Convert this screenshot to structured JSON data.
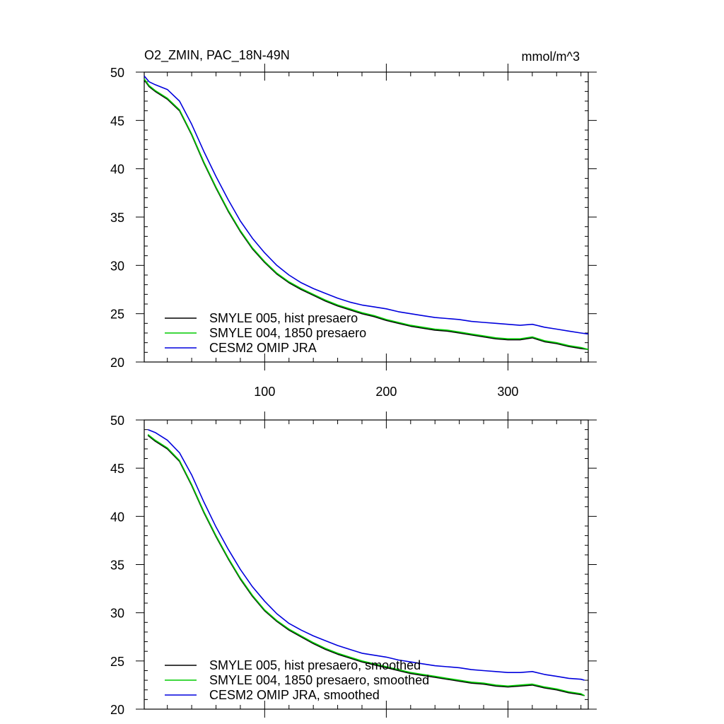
{
  "chart_data": [
    {
      "type": "line",
      "title_left": "O2_ZMIN, PAC_18N-49N",
      "title_right": "mmol/m^3",
      "xlim": [
        1,
        366
      ],
      "ylim": [
        20,
        50
      ],
      "xticks": [
        100,
        200,
        300
      ],
      "yticks": [
        20,
        25,
        30,
        35,
        40,
        45,
        50
      ],
      "grid": false,
      "legend": "bottom-left",
      "series": [
        {
          "name": "SMYLE 005, hist presaero",
          "color": "#000000",
          "x": [
            1,
            5,
            10,
            20,
            30,
            40,
            50,
            60,
            70,
            80,
            90,
            100,
            110,
            120,
            130,
            140,
            150,
            160,
            170,
            180,
            190,
            200,
            210,
            220,
            230,
            240,
            250,
            260,
            270,
            280,
            290,
            300,
            310,
            320,
            330,
            340,
            350,
            360,
            366
          ],
          "y": [
            49.2,
            48.5,
            48.0,
            47.2,
            46.0,
            43.5,
            40.6,
            38.0,
            35.6,
            33.5,
            31.7,
            30.3,
            29.1,
            28.2,
            27.5,
            26.9,
            26.3,
            25.8,
            25.4,
            25.0,
            24.7,
            24.3,
            24.0,
            23.7,
            23.5,
            23.3,
            23.2,
            23.0,
            22.8,
            22.6,
            22.4,
            22.3,
            22.3,
            22.5,
            22.1,
            21.9,
            21.6,
            21.4,
            21.3
          ]
        },
        {
          "name": "SMYLE 004, 1850 presaero",
          "color": "#00cc00",
          "x": [
            1,
            5,
            10,
            20,
            30,
            40,
            50,
            60,
            70,
            80,
            90,
            100,
            110,
            120,
            130,
            140,
            150,
            160,
            170,
            180,
            190,
            200,
            210,
            220,
            230,
            240,
            250,
            260,
            270,
            280,
            290,
            300,
            310,
            320,
            330,
            340,
            350,
            360,
            366
          ],
          "y": [
            49.3,
            48.6,
            48.1,
            47.3,
            46.1,
            43.6,
            40.7,
            38.1,
            35.7,
            33.6,
            31.8,
            30.4,
            29.2,
            28.3,
            27.6,
            27.0,
            26.4,
            25.9,
            25.5,
            25.1,
            24.8,
            24.4,
            24.1,
            23.8,
            23.6,
            23.4,
            23.3,
            23.1,
            22.9,
            22.7,
            22.5,
            22.4,
            22.4,
            22.6,
            22.2,
            22.0,
            21.7,
            21.5,
            21.3
          ]
        },
        {
          "name": "CESM2 OMIP JRA",
          "color": "#0000dd",
          "x": [
            1,
            5,
            10,
            20,
            30,
            40,
            50,
            60,
            70,
            80,
            90,
            100,
            110,
            120,
            130,
            140,
            150,
            160,
            170,
            180,
            190,
            200,
            210,
            220,
            230,
            240,
            250,
            260,
            270,
            280,
            290,
            300,
            310,
            320,
            330,
            340,
            350,
            360,
            366
          ],
          "y": [
            49.6,
            49.0,
            48.7,
            48.2,
            47.0,
            44.6,
            41.8,
            39.2,
            36.8,
            34.6,
            32.8,
            31.3,
            30.0,
            29.0,
            28.2,
            27.6,
            27.1,
            26.6,
            26.2,
            25.9,
            25.7,
            25.5,
            25.2,
            25.0,
            24.8,
            24.6,
            24.5,
            24.4,
            24.2,
            24.1,
            24.0,
            23.9,
            23.8,
            23.9,
            23.6,
            23.4,
            23.2,
            23.0,
            22.9
          ]
        }
      ]
    },
    {
      "type": "line",
      "xlim": [
        1,
        366
      ],
      "ylim": [
        20,
        50
      ],
      "xticks": [
        100,
        200,
        300
      ],
      "yticks": [
        20,
        25,
        30,
        35,
        40,
        45,
        50
      ],
      "grid": false,
      "legend": "bottom-left",
      "series": [
        {
          "name": "SMYLE 005, hist presaero, smoothed",
          "color": "#000000",
          "x": [
            4,
            10,
            20,
            30,
            40,
            50,
            60,
            70,
            80,
            90,
            100,
            110,
            120,
            130,
            140,
            150,
            160,
            170,
            180,
            190,
            200,
            210,
            220,
            230,
            240,
            250,
            260,
            270,
            280,
            290,
            300,
            310,
            320,
            330,
            340,
            350,
            360,
            363
          ],
          "y": [
            48.4,
            47.8,
            47.0,
            45.7,
            43.2,
            40.4,
            37.9,
            35.6,
            33.5,
            31.7,
            30.2,
            29.1,
            28.2,
            27.5,
            26.8,
            26.2,
            25.7,
            25.3,
            24.9,
            24.6,
            24.3,
            24.0,
            23.7,
            23.5,
            23.3,
            23.1,
            22.9,
            22.7,
            22.6,
            22.4,
            22.3,
            22.4,
            22.5,
            22.2,
            22.0,
            21.7,
            21.5,
            21.4
          ]
        },
        {
          "name": "SMYLE 004, 1850 presaero, smoothed",
          "color": "#00cc00",
          "x": [
            4,
            10,
            20,
            30,
            40,
            50,
            60,
            70,
            80,
            90,
            100,
            110,
            120,
            130,
            140,
            150,
            160,
            170,
            180,
            190,
            200,
            210,
            220,
            230,
            240,
            250,
            260,
            270,
            280,
            290,
            300,
            310,
            320,
            330,
            340,
            350,
            360,
            363
          ],
          "y": [
            48.5,
            47.9,
            47.1,
            45.8,
            43.3,
            40.5,
            38.0,
            35.7,
            33.6,
            31.8,
            30.3,
            29.2,
            28.3,
            27.6,
            26.9,
            26.3,
            25.8,
            25.4,
            25.0,
            24.7,
            24.4,
            24.1,
            23.8,
            23.6,
            23.4,
            23.2,
            23.0,
            22.8,
            22.7,
            22.5,
            22.4,
            22.5,
            22.6,
            22.3,
            22.1,
            21.8,
            21.6,
            21.4
          ]
        },
        {
          "name": "CESM2 OMIP JRA, smoothed",
          "color": "#0000dd",
          "x": [
            4,
            10,
            20,
            30,
            40,
            50,
            60,
            70,
            80,
            90,
            100,
            110,
            120,
            130,
            140,
            150,
            160,
            170,
            180,
            190,
            200,
            210,
            220,
            230,
            240,
            250,
            260,
            270,
            280,
            290,
            300,
            310,
            320,
            330,
            340,
            350,
            360,
            363
          ],
          "y": [
            49.0,
            48.7,
            47.9,
            46.6,
            44.3,
            41.5,
            38.9,
            36.6,
            34.5,
            32.7,
            31.2,
            29.9,
            28.9,
            28.2,
            27.6,
            27.1,
            26.6,
            26.2,
            25.8,
            25.6,
            25.4,
            25.1,
            24.9,
            24.7,
            24.5,
            24.4,
            24.3,
            24.1,
            24.0,
            23.9,
            23.8,
            23.8,
            23.9,
            23.6,
            23.4,
            23.2,
            23.1,
            23.0
          ]
        }
      ]
    }
  ]
}
